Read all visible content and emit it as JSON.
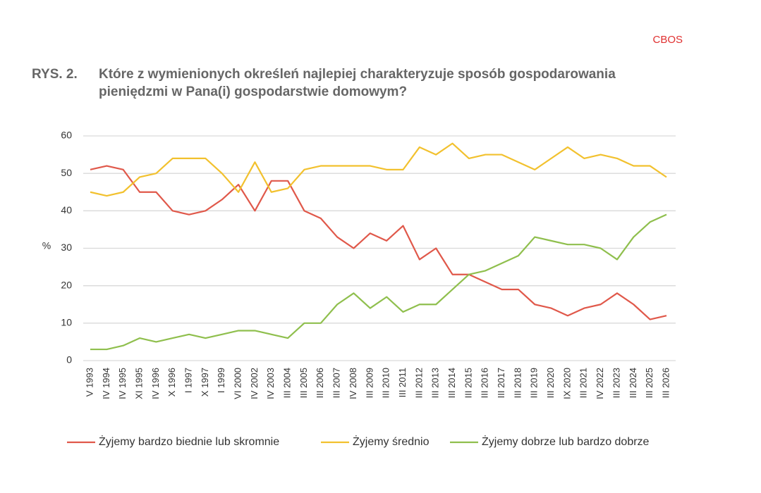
{
  "brand": "CBOS",
  "chart_data": {
    "type": "line",
    "label": "RYS. 2.",
    "title": [
      "Które z wymienionych określeń najlepiej charakteryzuje sposób gospodarowania",
      "pieniędzmi w Pana(i) gospodarstwie domowym?"
    ],
    "y_label": "%",
    "categories": [
      "V 1993",
      "IV 1994",
      "IV 1995",
      "XI 1995",
      "IV 1996",
      "X 1996",
      "I 1997",
      "X 1997",
      "I 1999",
      "VI 2000",
      "IV 2002",
      "IV 2003",
      "III 2004",
      "III 2005",
      "III 2006",
      "III 2007",
      "IV 2008",
      "III 2009",
      "III 2010",
      "III 2011",
      "III 2012",
      "III 2013",
      "III 2014",
      "III 2015",
      "III 2016",
      "III 2017",
      "III 2018",
      "III 2019",
      "III 2020",
      "IX 2020",
      "III 2021",
      "IV 2022",
      "III 2023",
      "III 2024",
      "III 2025",
      "III 2026"
    ],
    "series": [
      {
        "name": "Żyjemy bardzo biednie lub skromnie",
        "color": "#e0584a",
        "values": [
          51,
          52,
          51,
          45,
          45,
          40,
          39,
          40,
          43,
          47,
          40,
          48,
          48,
          40,
          38,
          33,
          30,
          34,
          32,
          36,
          27,
          30,
          23,
          23,
          21,
          19,
          19,
          15,
          14,
          12,
          14,
          15,
          18,
          15,
          11,
          12
        ]
      },
      {
        "name": "Żyjemy średnio",
        "color": "#f2c12e",
        "values": [
          45,
          44,
          45,
          49,
          50,
          54,
          54,
          54,
          50,
          45,
          53,
          45,
          46,
          51,
          52,
          52,
          52,
          52,
          51,
          51,
          57,
          55,
          58,
          54,
          55,
          55,
          53,
          51,
          54,
          57,
          54,
          55,
          54,
          52,
          52,
          49
        ]
      },
      {
        "name": "Żyjemy dobrze lub bardzo dobrze",
        "color": "#8fbf4d",
        "values": [
          3,
          3,
          4,
          6,
          5,
          6,
          7,
          6,
          7,
          8,
          8,
          7,
          6,
          10,
          10,
          15,
          18,
          14,
          17,
          13,
          15,
          15,
          19,
          23,
          24,
          26,
          28,
          33,
          32,
          31,
          31,
          30,
          27,
          33,
          37,
          39
        ]
      }
    ],
    "ylim": [
      0,
      60
    ],
    "yticks": [
      0,
      10,
      20,
      30,
      40,
      50,
      60
    ],
    "grid": true
  }
}
